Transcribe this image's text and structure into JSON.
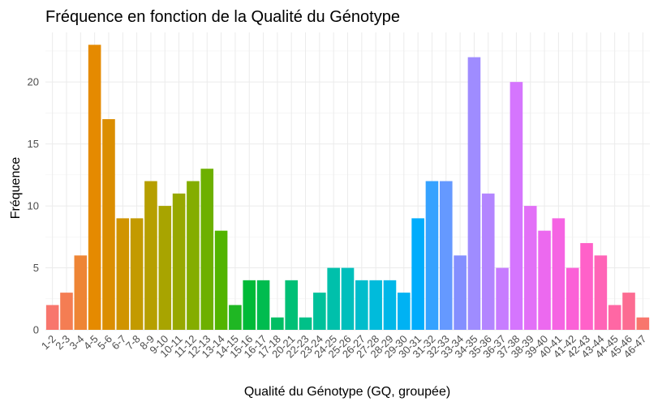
{
  "chart_data": {
    "type": "bar",
    "title": "Fréquence en fonction de la Qualité du Génotype",
    "xlabel": "Qualité du Génotype (GQ, groupée)",
    "ylabel": "Fréquence",
    "ylim": [
      0,
      24
    ],
    "yticks": [
      0,
      5,
      10,
      15,
      20
    ],
    "grid": true,
    "legend": "none",
    "categories": [
      "1-2",
      "2-3",
      "3-4",
      "4-5",
      "5-6",
      "6-7",
      "7-8",
      "8-9",
      "9-10",
      "10-11",
      "11-12",
      "12-13",
      "13-14",
      "14-15",
      "15-16",
      "16-17",
      "17-18",
      "20-21",
      "22-23",
      "23-24",
      "24-25",
      "25-26",
      "26-27",
      "27-28",
      "28-29",
      "29-30",
      "30-31",
      "31-32",
      "32-33",
      "33-34",
      "34-35",
      "35-36",
      "36-37",
      "37-38",
      "38-39",
      "39-40",
      "40-41",
      "41-42",
      "42-43",
      "43-44",
      "44-45",
      "45-46",
      "46-47"
    ],
    "values": [
      2,
      3,
      6,
      23,
      17,
      9,
      9,
      12,
      10,
      11,
      12,
      13,
      8,
      2,
      4,
      4,
      1,
      4,
      1,
      3,
      5,
      5,
      4,
      4,
      4,
      3,
      9,
      12,
      12,
      6,
      22,
      11,
      5,
      20,
      10,
      8,
      9,
      5,
      7,
      6,
      2,
      3,
      1
    ],
    "colors": [
      "#F8766D",
      "#F47D53",
      "#EE8535",
      "#E58A00",
      "#DB8E00",
      "#D09400",
      "#C39A00",
      "#B69F00",
      "#A8A400",
      "#97A800",
      "#84AD00",
      "#6DB000",
      "#52B400",
      "#1FB723",
      "#00BA38",
      "#00BC4F",
      "#00BE63",
      "#00C076",
      "#00C088",
      "#00C19A",
      "#00C0AB",
      "#00BFBC",
      "#00BDCC",
      "#00BBDB",
      "#00B7E8",
      "#00B2F3",
      "#00ACFC",
      "#35A2FF",
      "#6599FF",
      "#848FFF",
      "#9F8CFF",
      "#B385FF",
      "#C77CFF",
      "#D575FE",
      "#E270F7",
      "#EC69EF",
      "#F564E3",
      "#FB61D7",
      "#FF61C9",
      "#FF64B7",
      "#FF67A4",
      "#FC6C92",
      "#F8766D"
    ]
  }
}
